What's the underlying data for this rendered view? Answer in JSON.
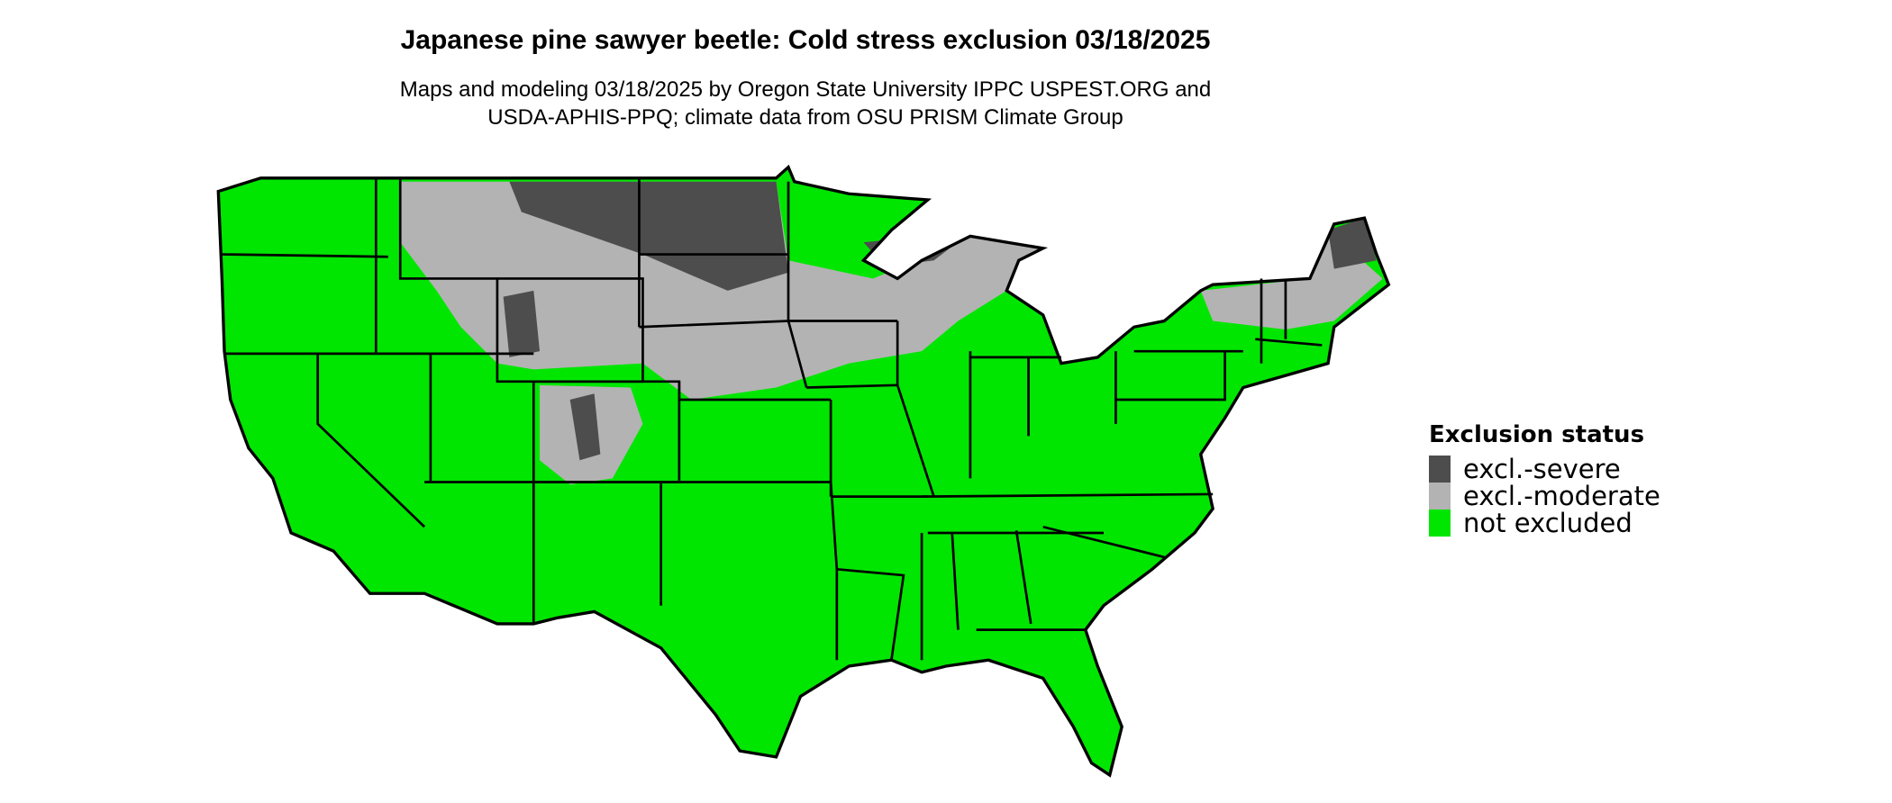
{
  "title": "Japanese pine sawyer beetle: Cold stress exclusion 03/18/2025",
  "subtitle_lines": [
    "Maps and modeling 03/18/2025 by Oregon State University IPPC USPEST.ORG and",
    "USDA-APHIS-PPQ; climate data from OSU PRISM Climate Group"
  ],
  "legend": {
    "title": "Exclusion status",
    "items": [
      {
        "label": "excl.-severe",
        "color": "#4d4d4d"
      },
      {
        "label": "excl.-moderate",
        "color": "#b3b3b3"
      },
      {
        "label": "not excluded",
        "color": "#00e600"
      }
    ]
  },
  "map": {
    "region": "Contiguous United States",
    "border_color": "#000000"
  }
}
